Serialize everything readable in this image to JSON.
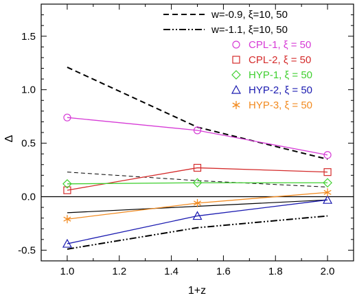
{
  "chart_data": {
    "type": "line",
    "xlabel": "1+z",
    "ylabel": "Δ",
    "xlim": [
      0.9,
      2.1
    ],
    "ylim": [
      -0.6,
      1.8
    ],
    "xticks": [
      "1.0",
      "1.2",
      "1.4",
      "1.6",
      "1.8",
      "2.0"
    ],
    "yticks": [
      "-0.5",
      "0.0",
      "0.5",
      "1.0",
      "1.5"
    ],
    "xtick_values": [
      1.0,
      1.2,
      1.4,
      1.6,
      1.8,
      2.0
    ],
    "ytick_values": [
      -0.5,
      0.0,
      0.5,
      1.0,
      1.5
    ],
    "zero_line": 0.0,
    "legend_position": "top-right",
    "series": [
      {
        "name": "w=-0.9, ξ=10, 50",
        "style": "dashed",
        "color": "#000000",
        "marker": "none",
        "legend_sample": true,
        "x": [
          1.0,
          1.5,
          2.0
        ],
        "y": [
          1.21,
          0.65,
          0.35
        ]
      },
      {
        "name": "",
        "style": "dashed-thin",
        "color": "#000000",
        "marker": "none",
        "legend_sample": false,
        "x": [
          1.0,
          1.5,
          2.0
        ],
        "y": [
          0.23,
          0.15,
          0.09
        ]
      },
      {
        "name": "w=-1.1, ξ=10, 50",
        "style": "dash-dot-dot",
        "color": "#000000",
        "marker": "none",
        "legend_sample": true,
        "x": [
          1.0,
          1.5,
          2.0
        ],
        "y": [
          -0.49,
          -0.29,
          -0.18
        ]
      },
      {
        "name": "",
        "style": "solid-thin",
        "color": "#000000",
        "marker": "none",
        "legend_sample": false,
        "x": [
          1.0,
          1.5,
          2.0
        ],
        "y": [
          -0.15,
          -0.09,
          -0.03
        ]
      },
      {
        "name": "CPL-1, ξ = 50",
        "style": "solid",
        "color": "#d63ad6",
        "marker": "circle",
        "legend_sample": false,
        "x": [
          1.0,
          1.5,
          2.0
        ],
        "y": [
          0.74,
          0.62,
          0.39
        ]
      },
      {
        "name": "CPL-2, ξ = 50",
        "style": "solid",
        "color": "#d42a2a",
        "marker": "square",
        "legend_sample": false,
        "x": [
          1.0,
          1.5,
          2.0
        ],
        "y": [
          0.06,
          0.27,
          0.23
        ]
      },
      {
        "name": "HYP-1, ξ = 50",
        "style": "solid",
        "color": "#3fcf2f",
        "marker": "diamond",
        "legend_sample": false,
        "x": [
          1.0,
          1.5,
          2.0
        ],
        "y": [
          0.12,
          0.13,
          0.13
        ]
      },
      {
        "name": "HYP-2, ξ = 50",
        "style": "solid",
        "color": "#1a1ab0",
        "marker": "triangle",
        "legend_sample": false,
        "x": [
          1.0,
          1.5,
          2.0
        ],
        "y": [
          -0.44,
          -0.18,
          -0.03
        ]
      },
      {
        "name": "HYP-3, ξ = 50",
        "style": "solid",
        "color": "#f28a1f",
        "marker": "asterisk",
        "legend_sample": false,
        "x": [
          1.0,
          1.5,
          2.0
        ],
        "y": [
          -0.21,
          -0.06,
          0.04
        ]
      }
    ]
  }
}
